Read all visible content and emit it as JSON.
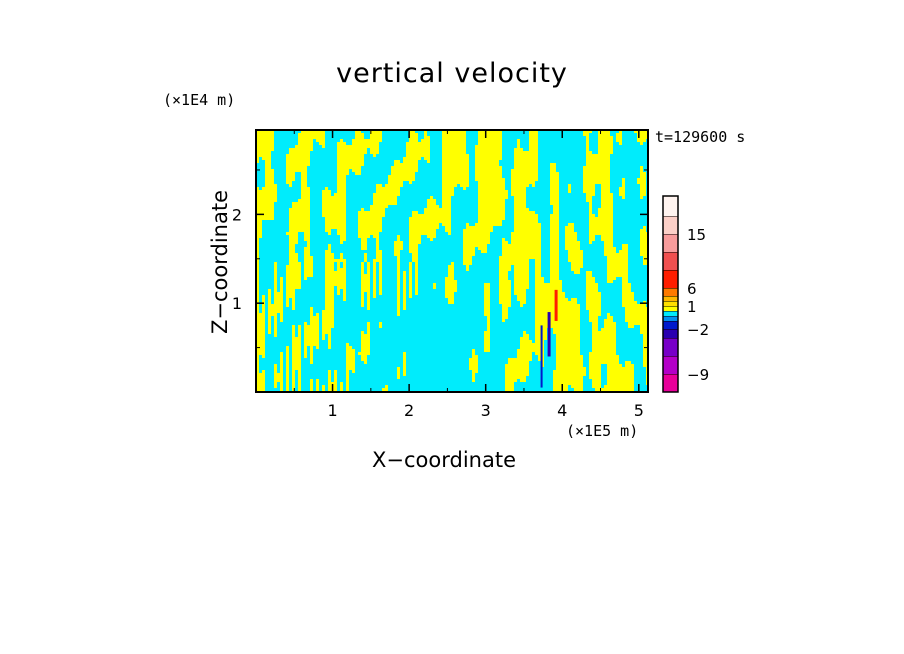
{
  "chart_data": {
    "type": "heatmap",
    "title": "vertical velocity",
    "xlabel": "X−coordinate",
    "ylabel": "Z−coordinate",
    "x_unit": "(×1E5 m)",
    "z_unit": "(×1E4 m)",
    "time_label": "t=129600 s",
    "xlim": [
      0,
      5.12
    ],
    "zlim": [
      0,
      2.95
    ],
    "x_ticks": [
      1,
      2,
      3,
      4,
      5
    ],
    "z_ticks": [
      1,
      2
    ],
    "x_tick_labels": [
      "1",
      "2",
      "3",
      "4",
      "5"
    ],
    "z_tick_labels": [
      "1",
      "2"
    ],
    "field_colors": {
      "positive": "#ffff00",
      "negative": "#00ecfc"
    },
    "colorbar": {
      "levels": [
        -12,
        -9,
        -6,
        -4,
        -2,
        -1,
        0,
        0.5,
        1,
        2,
        4,
        6,
        8,
        12,
        15,
        18,
        24
      ],
      "colors": [
        "#e8009a",
        "#b400c8",
        "#7800c8",
        "#2a00b0",
        "#001acc",
        "#0090f0",
        "#00ecfc",
        "#ffff00",
        "#ffe000",
        "#ffb800",
        "#ff7a00",
        "#ff1e00",
        "#f05050",
        "#f89c9c",
        "#fcd0c8",
        "#fff4f0"
      ],
      "labels": [
        {
          "value": 15,
          "text": "15"
        },
        {
          "value": 6,
          "text": "6"
        },
        {
          "value": 1,
          "text": "1"
        },
        {
          "value": -2,
          "text": "−2"
        },
        {
          "value": -9,
          "text": "−9"
        }
      ]
    }
  }
}
